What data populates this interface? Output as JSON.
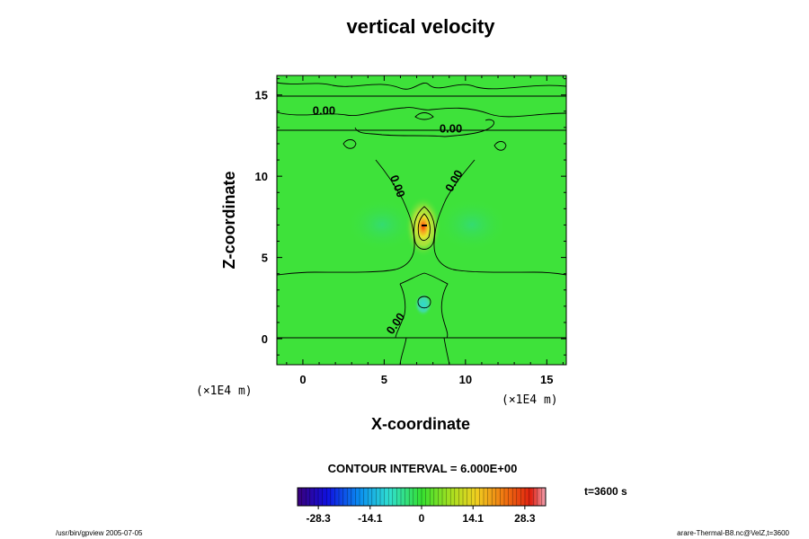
{
  "chart_data": {
    "type": "heatmap",
    "title": "vertical velocity",
    "xlabel": "X-coordinate",
    "ylabel": "Z-coordinate",
    "xlim": [
      -1.6,
      16.2
    ],
    "ylim": [
      -1.6,
      16.2
    ],
    "x_ticks": [
      0,
      5,
      10,
      15
    ],
    "y_ticks": [
      0,
      5,
      10,
      15
    ],
    "x_unit": "(×1E4 m)",
    "y_unit": "(×1E4 m)",
    "contour_labels": [
      {
        "text": "0.00",
        "x": 1.3,
        "z": 13.8,
        "angle": 0
      },
      {
        "text": "0.00",
        "x": 9.1,
        "z": 12.7,
        "angle": 0
      },
      {
        "text": "0.00",
        "x": 5.6,
        "z": 9.3,
        "angle": 70
      },
      {
        "text": "0.00",
        "x": 9.5,
        "z": 9.6,
        "angle": -60
      },
      {
        "text": "0.00",
        "x": 5.9,
        "z": 0.8,
        "angle": -55
      }
    ],
    "contour_interval": "CONTOUR INTERVAL = 6.000E+00",
    "time_label": "t=3600 s",
    "colorbar": {
      "min": -34,
      "max": 34,
      "ticks": [
        -28.3,
        -14.1,
        0,
        14.1,
        28.3
      ],
      "tick_labels": [
        "-28.3",
        "-14.1",
        "0",
        "14.1",
        "28.3"
      ]
    },
    "field_features": [
      {
        "kind": "updraft",
        "x": 7.4,
        "z": 6.9,
        "max": 28
      },
      {
        "kind": "downdraft",
        "x": 7.4,
        "z": 2.1,
        "min": -9
      }
    ]
  },
  "footer": {
    "left": "/usr/bin/gpview 2005-07-05",
    "right": "arare-Thermal-B8.nc@VelZ,t=3600"
  },
  "colors": {
    "background_field": "#3ee23a",
    "updraft_core": "#ff2a00",
    "updraft_mid": "#e8e62a",
    "downdraft": "#33d6c9"
  }
}
